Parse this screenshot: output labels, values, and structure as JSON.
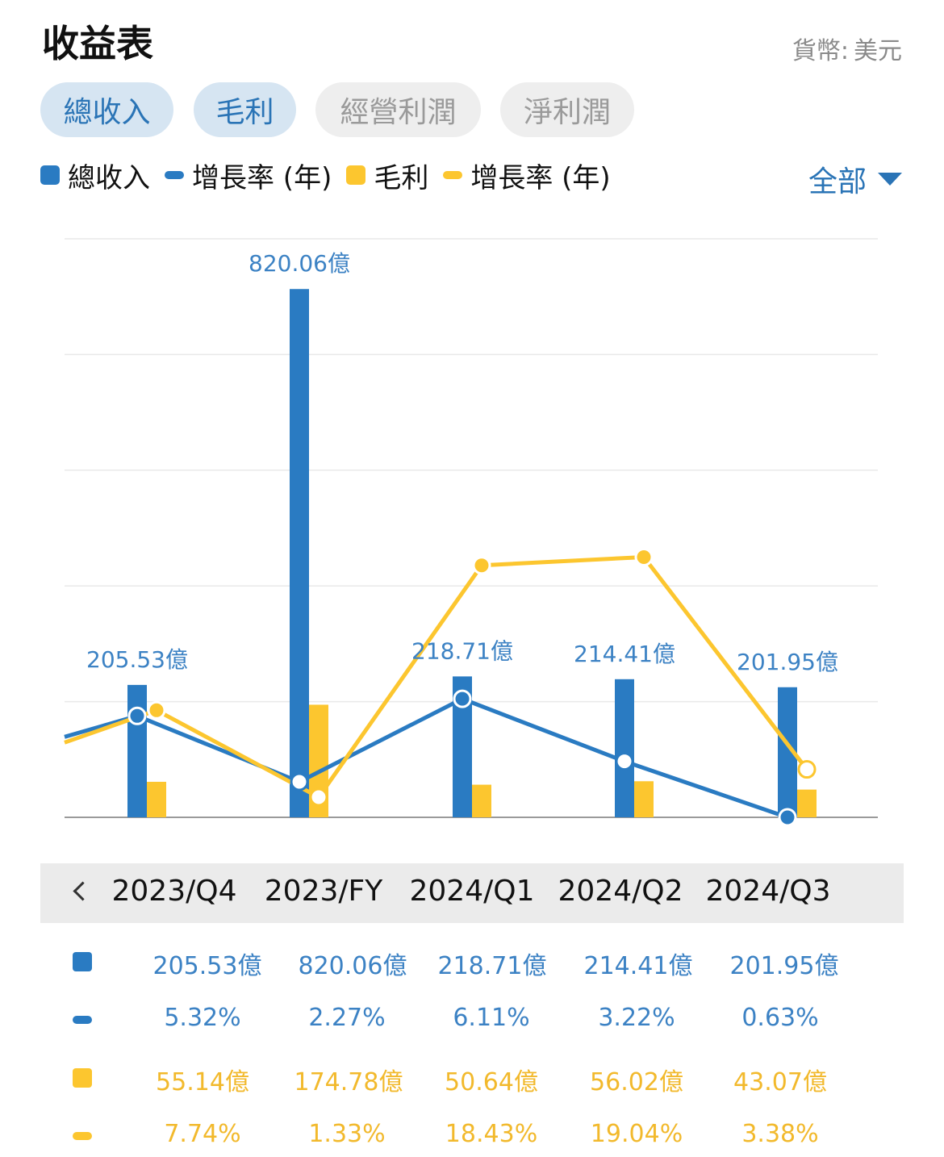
{
  "header": {
    "title": "收益表",
    "currency_label": "貨幣:",
    "currency_value": "美元"
  },
  "tabs": [
    {
      "label": "總收入",
      "active": true
    },
    {
      "label": "毛利",
      "active": true
    },
    {
      "label": "經營利潤",
      "active": false
    },
    {
      "label": "淨利潤",
      "active": false
    }
  ],
  "legend": [
    {
      "label": "總收入",
      "shape": "square",
      "color": "#2a7bc2"
    },
    {
      "label": "增長率 (年)",
      "shape": "line",
      "color": "#2a7bc2"
    },
    {
      "label": "毛利",
      "shape": "square",
      "color": "#fcc62f"
    },
    {
      "label": "增長率 (年)",
      "shape": "line",
      "color": "#fcc62f"
    }
  ],
  "filter": {
    "label": "全部"
  },
  "colors": {
    "blue": "#2a7bc2",
    "yellow": "#fcc62f",
    "grid": "#e9e9e9",
    "label_blue": "#3c82c4",
    "label_yellow": "#f2b92c"
  },
  "chart_data": {
    "type": "bar",
    "categories": [
      "2023/Q4",
      "2023/FY",
      "2024/Q1",
      "2024/Q2",
      "2024/Q3"
    ],
    "series": [
      {
        "name": "總收入",
        "kind": "bar",
        "values": [
          205.53,
          820.06,
          218.71,
          214.41,
          201.95
        ],
        "labels": [
          "205.53億",
          "820.06億",
          "218.71億",
          "214.41億",
          "201.95億"
        ]
      },
      {
        "name": "增長率 (年)",
        "kind": "line",
        "values": [
          5.32,
          2.27,
          6.11,
          3.22,
          0.63
        ],
        "labels": [
          "5.32%",
          "2.27%",
          "6.11%",
          "3.22%",
          "0.63%"
        ]
      },
      {
        "name": "毛利",
        "kind": "bar",
        "values": [
          55.14,
          174.78,
          50.64,
          56.02,
          43.07
        ],
        "labels": [
          "55.14億",
          "174.78億",
          "50.64億",
          "56.02億",
          "43.07億"
        ]
      },
      {
        "name": "增長率 (年)",
        "kind": "line",
        "values": [
          7.74,
          1.33,
          18.43,
          19.04,
          3.38
        ],
        "labels": [
          "7.74%",
          "1.33%",
          "18.43%",
          "19.04%",
          "3.38%"
        ]
      }
    ],
    "grid": true,
    "axes_labels_visible": false
  }
}
